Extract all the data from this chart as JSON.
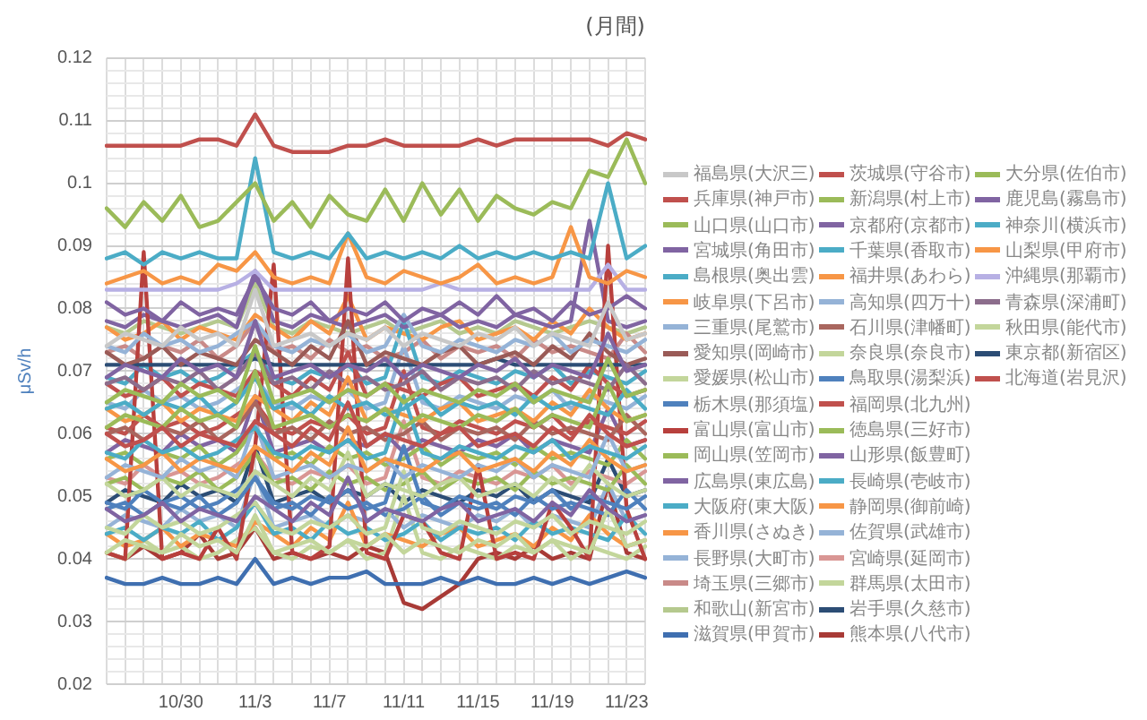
{
  "chart_data": {
    "type": "line",
    "title": "(月間)",
    "ylabel": "μSv/h",
    "categories": [
      null,
      null,
      null,
      null,
      "10/30",
      null,
      null,
      null,
      "11/3",
      null,
      null,
      null,
      "11/7",
      null,
      null,
      null,
      "11/11",
      null,
      null,
      null,
      "11/15",
      null,
      null,
      null,
      "11/19",
      null,
      null,
      null,
      "11/23",
      null
    ],
    "ylim": [
      0.02,
      0.12
    ],
    "yticks": [
      0.02,
      {
        "value": 0.022,
        "label": null
      },
      {
        "value": 0.024,
        "label": null
      },
      {
        "value": 0.026,
        "label": null
      },
      {
        "value": 0.028,
        "label": null
      },
      0.03,
      {
        "value": 0.032,
        "label": null
      },
      {
        "value": 0.034,
        "label": null
      },
      {
        "value": 0.036,
        "label": null
      },
      {
        "value": 0.038,
        "label": null
      },
      0.04,
      {
        "value": 0.042,
        "label": null
      },
      {
        "value": 0.044,
        "label": null
      },
      {
        "value": 0.046,
        "label": null
      },
      {
        "value": 0.048,
        "label": null
      },
      0.05,
      {
        "value": 0.052,
        "label": null
      },
      {
        "value": 0.054,
        "label": null
      },
      {
        "value": 0.056,
        "label": null
      },
      {
        "value": 0.058,
        "label": null
      },
      0.06,
      {
        "value": 0.062,
        "label": null
      },
      {
        "value": 0.064,
        "label": null
      },
      {
        "value": 0.066,
        "label": null
      },
      {
        "value": 0.068,
        "label": null
      },
      0.07,
      {
        "value": 0.072,
        "label": null
      },
      {
        "value": 0.074,
        "label": null
      },
      {
        "value": 0.076,
        "label": null
      },
      {
        "value": 0.078,
        "label": null
      },
      0.08,
      {
        "value": 0.082,
        "label": null
      },
      {
        "value": 0.084,
        "label": null
      },
      {
        "value": 0.086,
        "label": null
      },
      {
        "value": 0.088,
        "label": null
      },
      0.09,
      {
        "value": 0.092,
        "label": null
      },
      {
        "value": 0.094,
        "label": null
      },
      {
        "value": 0.096,
        "label": null
      },
      {
        "value": 0.098,
        "label": null
      },
      0.1,
      {
        "value": 0.102,
        "label": null
      },
      {
        "value": 0.104,
        "label": null
      },
      {
        "value": 0.106,
        "label": null
      },
      {
        "value": 0.108,
        "label": null
      },
      0.11,
      {
        "value": 0.112,
        "label": null
      },
      {
        "value": 0.114,
        "label": null
      },
      {
        "value": 0.116,
        "label": null
      },
      {
        "value": 0.118,
        "label": null
      },
      0.12
    ],
    "grid": true,
    "legend": "right",
    "series": [
      {
        "name": "福島県(大沢三)",
        "color": "#c8c8c8",
        "values": [
          0.074,
          0.076,
          0.075,
          0.074,
          0.077,
          0.075,
          0.076,
          0.074,
          0.083,
          0.074,
          0.075,
          0.076,
          0.074,
          0.076,
          0.075,
          0.077,
          0.074,
          0.076,
          0.075,
          0.074,
          0.076,
          0.075,
          0.077,
          0.074,
          0.076,
          0.075,
          0.074,
          0.081,
          0.075,
          0.076
        ]
      },
      {
        "name": "茨城県(守谷市)",
        "color": "#c0504d",
        "values": [
          0.106,
          0.106,
          0.106,
          0.106,
          0.106,
          0.107,
          0.107,
          0.106,
          0.111,
          0.106,
          0.105,
          0.105,
          0.105,
          0.106,
          0.106,
          0.107,
          0.106,
          0.106,
          0.106,
          0.106,
          0.107,
          0.106,
          0.107,
          0.107,
          0.107,
          0.107,
          0.107,
          0.106,
          0.108,
          0.107
        ]
      },
      {
        "name": "大分県(佐伯市)",
        "color": "#9bbb59",
        "values": [
          0.096,
          0.093,
          0.097,
          0.094,
          0.098,
          0.093,
          0.094,
          0.097,
          0.1,
          0.094,
          0.097,
          0.093,
          0.098,
          0.095,
          0.094,
          0.099,
          0.094,
          0.1,
          0.095,
          0.099,
          0.094,
          0.098,
          0.096,
          0.095,
          0.097,
          0.096,
          0.102,
          0.101,
          0.107,
          0.1
        ]
      },
      {
        "name": "兵庫県(神戸市)",
        "color": "#c0504d",
        "values": [
          0.06,
          0.058,
          0.059,
          0.061,
          0.058,
          0.06,
          0.059,
          0.058,
          0.062,
          0.06,
          0.058,
          0.061,
          0.059,
          0.065,
          0.058,
          0.06,
          0.059,
          0.058,
          0.06,
          0.061,
          0.058,
          0.059,
          0.06,
          0.058,
          0.061,
          0.059,
          0.063,
          0.06,
          0.058,
          0.059
        ]
      },
      {
        "name": "新潟県(村上市)",
        "color": "#9bbb59",
        "values": [
          0.061,
          0.063,
          0.062,
          0.061,
          0.064,
          0.062,
          0.063,
          0.061,
          0.07,
          0.061,
          0.062,
          0.063,
          0.061,
          0.063,
          0.062,
          0.064,
          0.061,
          0.063,
          0.062,
          0.061,
          0.063,
          0.062,
          0.064,
          0.061,
          0.063,
          0.062,
          0.061,
          0.068,
          0.062,
          0.063
        ]
      },
      {
        "name": "鹿児島(霧島市)",
        "color": "#8064a2",
        "values": [
          0.081,
          0.079,
          0.08,
          0.078,
          0.081,
          0.079,
          0.08,
          0.079,
          0.085,
          0.08,
          0.079,
          0.081,
          0.078,
          0.08,
          0.079,
          0.081,
          0.078,
          0.08,
          0.079,
          0.081,
          0.079,
          0.082,
          0.079,
          0.08,
          0.078,
          0.081,
          0.079,
          0.08,
          0.082,
          0.08
        ]
      },
      {
        "name": "山口県(山口市)",
        "color": "#9bbb59",
        "values": [
          0.065,
          0.067,
          0.066,
          0.065,
          0.068,
          0.066,
          0.067,
          0.065,
          0.074,
          0.065,
          0.066,
          0.067,
          0.065,
          0.067,
          0.066,
          0.068,
          0.065,
          0.067,
          0.066,
          0.065,
          0.067,
          0.066,
          0.068,
          0.065,
          0.067,
          0.066,
          0.065,
          0.072,
          0.066,
          0.067
        ]
      },
      {
        "name": "京都府(京都市)",
        "color": "#8064a2",
        "values": [
          0.069,
          0.071,
          0.07,
          0.069,
          0.072,
          0.07,
          0.071,
          0.069,
          0.078,
          0.069,
          0.07,
          0.071,
          0.069,
          0.071,
          0.07,
          0.072,
          0.069,
          0.071,
          0.07,
          0.069,
          0.071,
          0.07,
          0.072,
          0.069,
          0.071,
          0.07,
          0.069,
          0.076,
          0.07,
          0.071
        ]
      },
      {
        "name": "神奈川(横浜市)",
        "color": "#4bacc6",
        "values": [
          0.088,
          0.089,
          0.087,
          0.089,
          0.088,
          0.089,
          0.088,
          0.088,
          0.104,
          0.089,
          0.088,
          0.089,
          0.088,
          0.092,
          0.088,
          0.089,
          0.088,
          0.089,
          0.088,
          0.09,
          0.088,
          0.089,
          0.088,
          0.089,
          0.088,
          0.089,
          0.088,
          0.1,
          0.088,
          0.09
        ]
      },
      {
        "name": "宮城県(角田市)",
        "color": "#8064a2",
        "values": [
          0.048,
          0.046,
          0.047,
          0.049,
          0.046,
          0.048,
          0.047,
          0.046,
          0.05,
          0.048,
          0.046,
          0.049,
          0.047,
          0.053,
          0.046,
          0.048,
          0.047,
          0.046,
          0.048,
          0.049,
          0.046,
          0.047,
          0.048,
          0.046,
          0.049,
          0.047,
          0.051,
          0.048,
          0.046,
          0.047
        ]
      },
      {
        "name": "千葉県(香取市)",
        "color": "#4bacc6",
        "values": [
          0.064,
          0.065,
          0.063,
          0.065,
          0.064,
          0.066,
          0.063,
          0.065,
          0.069,
          0.064,
          0.065,
          0.063,
          0.066,
          0.064,
          0.065,
          0.063,
          0.064,
          0.066,
          0.063,
          0.065,
          0.064,
          0.065,
          0.063,
          0.066,
          0.064,
          0.065,
          0.064,
          0.063,
          0.067,
          0.064
        ]
      },
      {
        "name": "山梨県(甲府市)",
        "color": "#f79646",
        "values": [
          0.084,
          0.085,
          0.086,
          0.084,
          0.085,
          0.084,
          0.087,
          0.086,
          0.089,
          0.085,
          0.084,
          0.085,
          0.084,
          0.092,
          0.085,
          0.084,
          0.086,
          0.085,
          0.084,
          0.085,
          0.087,
          0.084,
          0.085,
          0.084,
          0.085,
          0.093,
          0.085,
          0.084,
          0.086,
          0.085
        ]
      },
      {
        "name": "島根県(奥出雲)",
        "color": "#4bacc6",
        "values": [
          0.057,
          0.056,
          0.059,
          0.057,
          0.058,
          0.056,
          0.057,
          0.059,
          0.061,
          0.057,
          0.056,
          0.058,
          0.057,
          0.059,
          0.056,
          0.057,
          0.066,
          0.057,
          0.056,
          0.058,
          0.057,
          0.056,
          0.058,
          0.057,
          0.059,
          0.056,
          0.058,
          0.057,
          0.056,
          0.058
        ]
      },
      {
        "name": "福井県(あわら)",
        "color": "#f79646",
        "values": [
          0.064,
          0.062,
          0.063,
          0.065,
          0.062,
          0.064,
          0.063,
          0.062,
          0.066,
          0.064,
          0.062,
          0.065,
          0.063,
          0.069,
          0.062,
          0.064,
          0.063,
          0.062,
          0.064,
          0.065,
          0.062,
          0.063,
          0.064,
          0.062,
          0.065,
          0.063,
          0.067,
          0.064,
          0.062,
          0.063
        ]
      },
      {
        "name": "沖縄県(那覇市)",
        "color": "#b7b0e4",
        "values": [
          0.083,
          0.083,
          0.083,
          0.083,
          0.083,
          0.083,
          0.083,
          0.084,
          0.086,
          0.083,
          0.083,
          0.083,
          0.083,
          0.083,
          0.083,
          0.083,
          0.083,
          0.083,
          0.084,
          0.083,
          0.083,
          0.083,
          0.083,
          0.083,
          0.083,
          0.083,
          0.083,
          0.087,
          0.083,
          0.083
        ]
      },
      {
        "name": "岐阜県(下呂市)",
        "color": "#f79646",
        "values": [
          0.056,
          0.054,
          0.055,
          0.057,
          0.054,
          0.056,
          0.055,
          0.054,
          0.058,
          0.056,
          0.054,
          0.057,
          0.055,
          0.061,
          0.054,
          0.056,
          0.055,
          0.054,
          0.056,
          0.057,
          0.054,
          0.055,
          0.056,
          0.054,
          0.057,
          0.055,
          0.059,
          0.056,
          0.054,
          0.055
        ]
      },
      {
        "name": "高知県(四万十)",
        "color": "#95b3d7",
        "values": [
          0.074,
          0.073,
          0.076,
          0.074,
          0.075,
          0.073,
          0.074,
          0.076,
          0.078,
          0.074,
          0.073,
          0.075,
          0.074,
          0.076,
          0.073,
          0.074,
          0.079,
          0.074,
          0.073,
          0.075,
          0.074,
          0.073,
          0.075,
          0.074,
          0.076,
          0.073,
          0.075,
          0.074,
          0.073,
          0.075
        ]
      },
      {
        "name": "青森県(深浦町)",
        "color": "#8c6d8c",
        "values": [
          0.068,
          0.069,
          0.067,
          0.069,
          0.068,
          0.07,
          0.067,
          0.069,
          0.073,
          0.068,
          0.069,
          0.067,
          0.07,
          0.068,
          0.069,
          0.067,
          0.068,
          0.07,
          0.067,
          0.069,
          0.068,
          0.069,
          0.067,
          0.07,
          0.068,
          0.069,
          0.068,
          0.067,
          0.071,
          0.068
        ]
      },
      {
        "name": "三重県(尾鷲市)",
        "color": "#95b3d7",
        "values": [
          0.053,
          0.055,
          0.054,
          0.053,
          0.056,
          0.054,
          0.055,
          0.053,
          0.062,
          0.053,
          0.054,
          0.055,
          0.053,
          0.055,
          0.054,
          0.056,
          0.053,
          0.055,
          0.054,
          0.053,
          0.055,
          0.054,
          0.056,
          0.053,
          0.055,
          0.054,
          0.053,
          0.06,
          0.054,
          0.055
        ]
      },
      {
        "name": "石川県(津幡町)",
        "color": "#a9665e",
        "values": [
          0.06,
          0.061,
          0.059,
          0.061,
          0.06,
          0.062,
          0.059,
          0.061,
          0.065,
          0.06,
          0.061,
          0.059,
          0.062,
          0.06,
          0.061,
          0.059,
          0.06,
          0.062,
          0.059,
          0.061,
          0.06,
          0.061,
          0.059,
          0.062,
          0.06,
          0.061,
          0.06,
          0.059,
          0.063,
          0.06
        ]
      },
      {
        "name": "秋田県(能代市)",
        "color": "#c3d69b",
        "values": [
          0.041,
          0.043,
          0.042,
          0.041,
          0.044,
          0.042,
          0.043,
          0.041,
          0.047,
          0.041,
          0.042,
          0.043,
          0.041,
          0.043,
          0.042,
          0.044,
          0.041,
          0.043,
          0.042,
          0.041,
          0.043,
          0.042,
          0.044,
          0.041,
          0.043,
          0.042,
          0.041,
          0.048,
          0.042,
          0.043
        ]
      },
      {
        "name": "愛知県(岡崎市)",
        "color": "#9a5b57",
        "values": [
          0.073,
          0.071,
          0.072,
          0.074,
          0.071,
          0.073,
          0.072,
          0.071,
          0.075,
          0.073,
          0.071,
          0.074,
          0.072,
          0.078,
          0.071,
          0.073,
          0.072,
          0.071,
          0.073,
          0.074,
          0.071,
          0.072,
          0.073,
          0.071,
          0.074,
          0.072,
          0.076,
          0.073,
          0.071,
          0.072
        ]
      },
      {
        "name": "奈良県(奈良市)",
        "color": "#c3d69b",
        "values": [
          0.045,
          0.044,
          0.047,
          0.045,
          0.046,
          0.044,
          0.045,
          0.047,
          0.049,
          0.045,
          0.044,
          0.046,
          0.045,
          0.047,
          0.044,
          0.045,
          0.054,
          0.045,
          0.044,
          0.046,
          0.045,
          0.044,
          0.046,
          0.045,
          0.047,
          0.044,
          0.046,
          0.045,
          0.044,
          0.046
        ]
      },
      {
        "name": "東京都(新宿区)",
        "color": "#2c4d75",
        "values": [
          0.071,
          0.071,
          0.071,
          0.071,
          0.071,
          0.071,
          0.071,
          0.071,
          0.072,
          0.071,
          0.071,
          0.071,
          0.071,
          0.071,
          0.071,
          0.071,
          0.071,
          0.071,
          0.071,
          0.071,
          0.071,
          0.072,
          0.071,
          0.071,
          0.071,
          0.071,
          0.071,
          0.071,
          0.071,
          0.071
        ]
      },
      {
        "name": "愛媛県(松山市)",
        "color": "#c3d69b",
        "values": [
          0.052,
          0.05,
          0.051,
          0.053,
          0.05,
          0.052,
          0.051,
          0.05,
          0.054,
          0.052,
          0.05,
          0.053,
          0.051,
          0.057,
          0.05,
          0.052,
          0.051,
          0.05,
          0.052,
          0.053,
          0.05,
          0.051,
          0.052,
          0.05,
          0.053,
          0.051,
          0.055,
          0.052,
          0.05,
          0.051
        ]
      },
      {
        "name": "鳥取県(湯梨浜)",
        "color": "#4f81bd",
        "values": [
          0.048,
          0.049,
          0.047,
          0.049,
          0.048,
          0.05,
          0.047,
          0.049,
          0.053,
          0.048,
          0.049,
          0.047,
          0.05,
          0.048,
          0.049,
          0.047,
          0.048,
          0.05,
          0.047,
          0.049,
          0.048,
          0.049,
          0.047,
          0.05,
          0.048,
          0.049,
          0.048,
          0.047,
          0.051,
          0.048
        ]
      },
      {
        "name": "北海道(岩見沢)",
        "color": "#c0504d",
        "values": [
          0.061,
          0.06,
          0.063,
          0.061,
          0.062,
          0.06,
          0.061,
          0.063,
          0.065,
          0.061,
          0.06,
          0.062,
          0.061,
          0.063,
          0.06,
          0.061,
          0.07,
          0.061,
          0.06,
          0.062,
          0.061,
          0.06,
          0.062,
          0.061,
          0.063,
          0.06,
          0.062,
          0.061,
          0.06,
          0.062
        ]
      },
      {
        "name": "栃木県(那須塩)",
        "color": "#4f81bd",
        "values": [
          0.049,
          0.048,
          0.051,
          0.049,
          0.05,
          0.048,
          0.049,
          0.051,
          0.053,
          0.049,
          0.048,
          0.05,
          0.049,
          0.051,
          0.048,
          0.049,
          0.058,
          0.049,
          0.048,
          0.05,
          0.049,
          0.048,
          0.05,
          0.049,
          0.051,
          0.048,
          0.05,
          0.049,
          0.048,
          0.05
        ]
      },
      {
        "name": "福岡県(北九州)",
        "color": "#c0504d",
        "values": [
          0.068,
          0.066,
          0.067,
          0.069,
          0.066,
          0.068,
          0.067,
          0.066,
          0.07,
          0.068,
          0.066,
          0.069,
          0.067,
          0.073,
          0.066,
          0.068,
          0.067,
          0.066,
          0.068,
          0.069,
          0.066,
          0.067,
          0.068,
          0.066,
          0.069,
          0.067,
          0.071,
          0.068,
          0.066,
          0.067
        ]
      },
      {
        "name": "富山県(富山市)",
        "color": "#b8403d",
        "values": [
          0.041,
          0.04,
          0.089,
          0.04,
          0.041,
          0.04,
          0.045,
          0.04,
          0.058,
          0.087,
          0.041,
          0.04,
          0.042,
          0.088,
          0.041,
          0.04,
          0.047,
          0.046,
          0.041,
          0.04,
          0.055,
          0.04,
          0.041,
          0.04,
          0.049,
          0.045,
          0.04,
          0.09,
          0.048,
          0.04
        ]
      },
      {
        "name": "徳島県(三好市)",
        "color": "#9bbb59",
        "values": [
          0.052,
          0.053,
          0.051,
          0.053,
          0.052,
          0.054,
          0.051,
          0.053,
          0.057,
          0.052,
          0.053,
          0.051,
          0.054,
          0.052,
          0.053,
          0.051,
          0.052,
          0.054,
          0.051,
          0.053,
          0.052,
          0.053,
          0.051,
          0.054,
          0.052,
          0.053,
          0.052,
          0.051,
          0.055,
          0.052
        ]
      },
      {
        "name": "岡山県(笠岡市)",
        "color": "#9bbb59",
        "values": [
          0.056,
          0.057,
          0.055,
          0.057,
          0.056,
          0.058,
          0.055,
          0.057,
          0.061,
          0.056,
          0.057,
          0.055,
          0.058,
          0.056,
          0.057,
          0.055,
          0.056,
          0.058,
          0.055,
          0.057,
          0.056,
          0.057,
          0.055,
          0.058,
          0.056,
          0.057,
          0.056,
          0.055,
          0.059,
          0.056
        ]
      },
      {
        "name": "山形県(飯豊町)",
        "color": "#8064a2",
        "values": [
          0.078,
          0.077,
          0.079,
          0.078,
          0.077,
          0.078,
          0.079,
          0.077,
          0.086,
          0.078,
          0.077,
          0.079,
          0.078,
          0.077,
          0.078,
          0.079,
          0.077,
          0.078,
          0.079,
          0.077,
          0.078,
          0.077,
          0.079,
          0.078,
          0.077,
          0.078,
          0.094,
          0.078,
          0.077,
          0.078
        ]
      },
      {
        "name": "広島県(東広島)",
        "color": "#8064a2",
        "values": [
          0.057,
          0.059,
          0.058,
          0.057,
          0.06,
          0.058,
          0.059,
          0.057,
          0.066,
          0.057,
          0.058,
          0.059,
          0.057,
          0.059,
          0.058,
          0.06,
          0.057,
          0.059,
          0.058,
          0.057,
          0.059,
          0.058,
          0.06,
          0.057,
          0.059,
          0.058,
          0.057,
          0.064,
          0.058,
          0.059
        ]
      },
      {
        "name": "長崎県(壱岐市)",
        "color": "#4bacc6",
        "values": [
          0.044,
          0.045,
          0.043,
          0.045,
          0.044,
          0.046,
          0.043,
          0.045,
          0.049,
          0.044,
          0.045,
          0.043,
          0.046,
          0.044,
          0.045,
          0.043,
          0.044,
          0.046,
          0.043,
          0.045,
          0.044,
          0.045,
          0.043,
          0.046,
          0.044,
          0.045,
          0.044,
          0.043,
          0.047,
          0.044
        ]
      },
      {
        "name": "大阪府(東大阪)",
        "color": "#4bacc6",
        "values": [
          0.069,
          0.068,
          0.071,
          0.069,
          0.07,
          0.068,
          0.069,
          0.071,
          0.073,
          0.069,
          0.068,
          0.07,
          0.069,
          0.071,
          0.068,
          0.069,
          0.078,
          0.069,
          0.068,
          0.07,
          0.069,
          0.068,
          0.07,
          0.069,
          0.071,
          0.068,
          0.07,
          0.069,
          0.068,
          0.07
        ]
      },
      {
        "name": "静岡県(御前崎)",
        "color": "#f79646",
        "values": [
          0.044,
          0.042,
          0.043,
          0.045,
          0.042,
          0.044,
          0.043,
          0.042,
          0.046,
          0.044,
          0.042,
          0.045,
          0.043,
          0.049,
          0.042,
          0.044,
          0.043,
          0.042,
          0.044,
          0.045,
          0.042,
          0.043,
          0.044,
          0.042,
          0.045,
          0.043,
          0.047,
          0.044,
          0.042,
          0.043
        ]
      },
      {
        "name": "香川県(さぬき)",
        "color": "#f79646",
        "values": [
          0.077,
          0.075,
          0.076,
          0.078,
          0.075,
          0.077,
          0.076,
          0.075,
          0.079,
          0.077,
          0.075,
          0.078,
          0.076,
          0.082,
          0.075,
          0.077,
          0.076,
          0.075,
          0.077,
          0.078,
          0.075,
          0.076,
          0.077,
          0.075,
          0.078,
          0.076,
          0.08,
          0.077,
          0.075,
          0.076
        ]
      },
      {
        "name": "佐賀県(武雄市)",
        "color": "#95b3d7",
        "values": [
          0.045,
          0.047,
          0.046,
          0.045,
          0.048,
          0.046,
          0.047,
          0.045,
          0.054,
          0.045,
          0.046,
          0.047,
          0.045,
          0.047,
          0.046,
          0.048,
          0.045,
          0.047,
          0.046,
          0.045,
          0.047,
          0.046,
          0.048,
          0.045,
          0.047,
          0.046,
          0.045,
          0.052,
          0.046,
          0.047
        ]
      },
      {
        "name": "長野県(大町市)",
        "color": "#95b3d7",
        "values": [
          0.065,
          0.064,
          0.067,
          0.065,
          0.066,
          0.064,
          0.065,
          0.067,
          0.069,
          0.065,
          0.064,
          0.066,
          0.065,
          0.067,
          0.064,
          0.065,
          0.074,
          0.065,
          0.064,
          0.066,
          0.065,
          0.064,
          0.066,
          0.065,
          0.067,
          0.064,
          0.066,
          0.065,
          0.064,
          0.066
        ]
      },
      {
        "name": "宮崎県(延岡市)",
        "color": "#d99694",
        "values": [
          0.053,
          0.052,
          0.055,
          0.053,
          0.054,
          0.052,
          0.053,
          0.055,
          0.057,
          0.053,
          0.052,
          0.054,
          0.053,
          0.055,
          0.052,
          0.053,
          0.062,
          0.053,
          0.052,
          0.054,
          0.053,
          0.052,
          0.054,
          0.053,
          0.055,
          0.052,
          0.054,
          0.053,
          0.052,
          0.054
        ]
      },
      {
        "name": "埼玉県(三郷市)",
        "color": "#c98a88",
        "values": [
          0.073,
          0.074,
          0.072,
          0.074,
          0.073,
          0.075,
          0.072,
          0.074,
          0.078,
          0.073,
          0.074,
          0.072,
          0.075,
          0.073,
          0.074,
          0.072,
          0.073,
          0.075,
          0.072,
          0.074,
          0.073,
          0.074,
          0.072,
          0.075,
          0.073,
          0.074,
          0.073,
          0.072,
          0.076,
          0.073
        ]
      },
      {
        "name": "群馬県(太田市)",
        "color": "#c3d69b",
        "values": [
          0.041,
          0.04,
          0.043,
          0.041,
          0.042,
          0.04,
          0.041,
          0.043,
          0.045,
          0.041,
          0.04,
          0.042,
          0.041,
          0.043,
          0.04,
          0.041,
          0.05,
          0.041,
          0.04,
          0.042,
          0.041,
          0.04,
          0.042,
          0.041,
          0.043,
          0.04,
          0.042,
          0.041,
          0.04,
          0.042
        ]
      },
      {
        "name": "和歌山(新宮市)",
        "color": "#b5c98e",
        "values": [
          0.077,
          0.076,
          0.078,
          0.077,
          0.076,
          0.077,
          0.078,
          0.077,
          0.084,
          0.077,
          0.076,
          0.078,
          0.077,
          0.076,
          0.077,
          0.078,
          0.076,
          0.077,
          0.078,
          0.076,
          0.077,
          0.076,
          0.078,
          0.077,
          0.076,
          0.077,
          0.078,
          0.077,
          0.076,
          0.077
        ]
      },
      {
        "name": "岩手県(久慈市)",
        "color": "#2c4d75",
        "values": [
          0.049,
          0.051,
          0.05,
          0.049,
          0.052,
          0.05,
          0.051,
          0.049,
          0.058,
          0.049,
          0.05,
          0.051,
          0.049,
          0.051,
          0.05,
          0.052,
          0.049,
          0.051,
          0.05,
          0.049,
          0.051,
          0.05,
          0.052,
          0.049,
          0.051,
          0.05,
          0.049,
          0.056,
          0.05,
          0.051
        ]
      },
      {
        "name": "滋賀県(甲賀市)",
        "color": "#3f6fb0",
        "values": [
          0.037,
          0.036,
          0.036,
          0.037,
          0.036,
          0.036,
          0.037,
          0.036,
          0.04,
          0.036,
          0.037,
          0.036,
          0.037,
          0.037,
          0.038,
          0.036,
          0.036,
          0.036,
          0.037,
          0.036,
          0.037,
          0.036,
          0.036,
          0.037,
          0.036,
          0.037,
          0.036,
          0.037,
          0.038,
          0.037
        ]
      },
      {
        "name": "熊本県(八代市)",
        "color": "#a83a36",
        "values": [
          0.041,
          0.04,
          0.042,
          0.04,
          0.041,
          0.044,
          0.04,
          0.041,
          0.045,
          0.04,
          0.041,
          0.04,
          0.041,
          0.04,
          0.042,
          0.041,
          0.033,
          0.032,
          0.034,
          0.036,
          0.04,
          0.041,
          0.04,
          0.042,
          0.04,
          0.041,
          0.04,
          0.052,
          0.041,
          0.04
        ]
      }
    ]
  }
}
